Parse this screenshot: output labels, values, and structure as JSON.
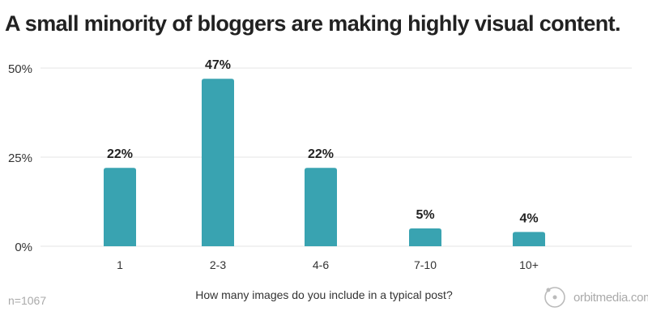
{
  "chart_data": {
    "type": "bar",
    "title": "A small minority of bloggers are making highly visual content.",
    "xlabel": "How many images do you include in a typical post?",
    "ylabel": "",
    "categories": [
      "1",
      "2-3",
      "4-6",
      "7-10",
      "10+"
    ],
    "values": [
      22,
      47,
      22,
      5,
      4
    ],
    "data_labels": [
      "22%",
      "47%",
      "22%",
      "5%",
      "4%"
    ],
    "yticks": [
      0,
      25,
      50
    ],
    "ytick_labels": [
      "0%",
      "25%",
      "50%"
    ],
    "ylim": [
      0,
      50
    ],
    "grid": true,
    "bar_color": "#39a3b1"
  },
  "footnote": "n=1067",
  "logo": {
    "text": "orbitmedia.com",
    "icon": "orbit-icon"
  }
}
